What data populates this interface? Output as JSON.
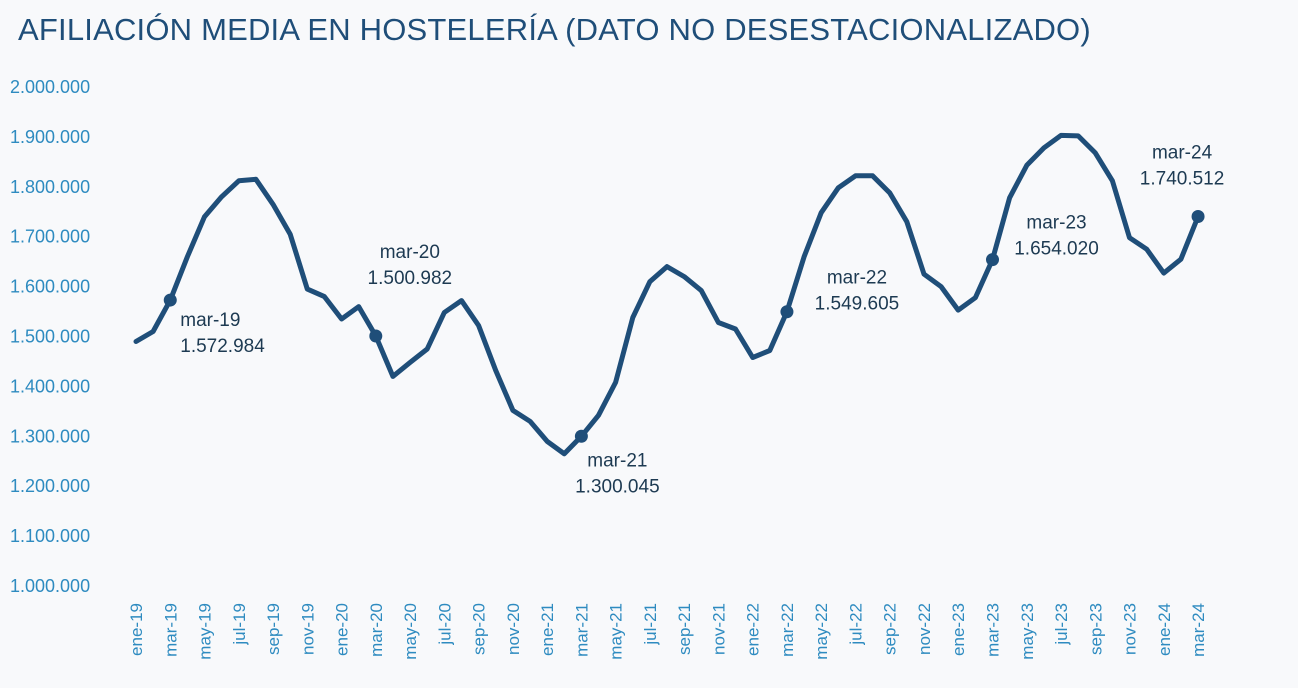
{
  "chart_data": {
    "type": "line",
    "title": "AFILIACIÓN MEDIA EN HOSTELERÍA (DATO NO DESESTACIONALIZADO)",
    "xlabel": "",
    "ylabel": "",
    "ylim": [
      1000000,
      2000000
    ],
    "yticks": [
      1000000,
      1100000,
      1200000,
      1300000,
      1400000,
      1500000,
      1600000,
      1700000,
      1800000,
      1900000,
      2000000
    ],
    "ytick_labels": [
      "1.000.000",
      "1.100.000",
      "1.200.000",
      "1.300.000",
      "1.400.000",
      "1.500.000",
      "1.600.000",
      "1.700.000",
      "1.800.000",
      "1.900.000",
      "2.000.000"
    ],
    "grid": false,
    "line_color": "#1f4e79",
    "tick_color": "#2e8bc0",
    "xtick_labels": [
      "ene-19",
      "mar-19",
      "may-19",
      "jul-19",
      "sep-19",
      "nov-19",
      "ene-20",
      "mar-20",
      "may-20",
      "jul-20",
      "sep-20",
      "nov-20",
      "ene-21",
      "mar-21",
      "may-21",
      "jul-21",
      "sep-21",
      "nov-21",
      "ene-22",
      "mar-22",
      "may-22",
      "jul-22",
      "sep-22",
      "nov-22",
      "ene-23",
      "mar-23",
      "may-23",
      "jul-23",
      "sep-23",
      "nov-23",
      "ene-24",
      "mar-24"
    ],
    "series": [
      {
        "name": "Afiliación media en hostelería",
        "values": [
          1490000,
          1510000,
          1572984,
          1660000,
          1740000,
          1780000,
          1812000,
          1815000,
          1765000,
          1705000,
          1595000,
          1580000,
          1535000,
          1560000,
          1500982,
          1420000,
          1448000,
          1475000,
          1548000,
          1572000,
          1522000,
          1432000,
          1352000,
          1330000,
          1290000,
          1265000,
          1300045,
          1342000,
          1408000,
          1538000,
          1610000,
          1640000,
          1620000,
          1592000,
          1528000,
          1515000,
          1458000,
          1472000,
          1549605,
          1660000,
          1748000,
          1798000,
          1822000,
          1822000,
          1788000,
          1730000,
          1625000,
          1600000,
          1553000,
          1578000,
          1654020,
          1778000,
          1843000,
          1878000,
          1903000,
          1902000,
          1868000,
          1812000,
          1698000,
          1675000,
          1627000,
          1655000,
          1740512
        ]
      }
    ],
    "annotations": [
      {
        "index": 2,
        "month": "mar-19",
        "value": "1.572.984"
      },
      {
        "index": 14,
        "month": "mar-20",
        "value": "1.500.982"
      },
      {
        "index": 26,
        "month": "mar-21",
        "value": "1.300.045"
      },
      {
        "index": 38,
        "month": "mar-22",
        "value": "1.549.605"
      },
      {
        "index": 50,
        "month": "mar-23",
        "value": "1.654.020"
      },
      {
        "index": 62,
        "month": "mar-24",
        "value": "1.740.512"
      }
    ]
  }
}
